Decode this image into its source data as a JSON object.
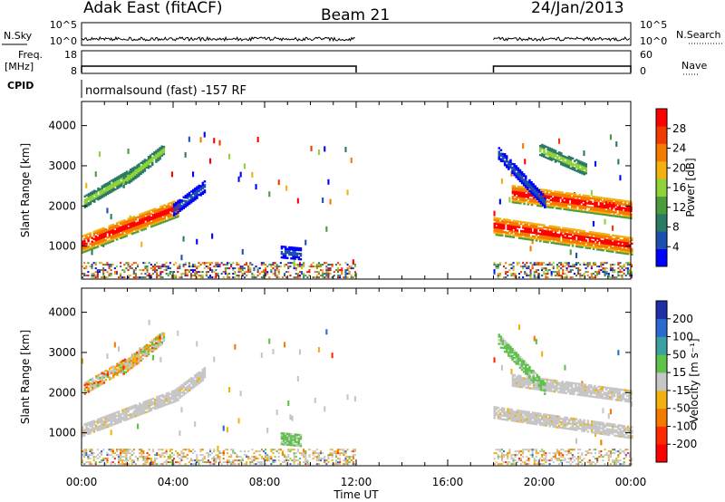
{
  "header": {
    "station": "Adak East (fitACF)",
    "beam": "Beam 21",
    "date": "24/Jan/2013"
  },
  "strip": {
    "nsky_label": "N.Sky",
    "nsearch_label": "N.Search",
    "noise_ticks_left": [
      "10^5",
      "10^0"
    ],
    "noise_ticks_right": [
      "10^5",
      "10^0"
    ],
    "freq_label": "Freq.",
    "freq_unit": "[MHz]",
    "freq_ticks": [
      "18",
      "8"
    ],
    "nave_label": "Nave",
    "nave_ticks": [
      "60",
      "0"
    ],
    "cpid_label": "CPID",
    "cpid_text": "normalsound (fast) -157 RF"
  },
  "chart_data": [
    {
      "type": "heatmap",
      "name": "power",
      "ylabel": "Slant Range [km]",
      "xlabel": "Time UT",
      "ylim": [
        180,
        4600
      ],
      "xlim_hours": [
        0,
        24
      ],
      "x_tick_labels": [
        "00:00",
        "04:00",
        "08:00",
        "12:00",
        "16:00",
        "20:00",
        "00:00"
      ],
      "y_tick_values": [
        1000,
        2000,
        3000,
        4000
      ],
      "y_tick_labels": [
        "1000",
        "2000",
        "3000",
        "4000"
      ],
      "data_gaps_hours": [
        [
          12,
          18
        ]
      ],
      "colorbar": {
        "label": "Power [dB]",
        "tick_labels": [
          "4",
          "8",
          "12",
          "16",
          "20",
          "24",
          "28"
        ],
        "range": [
          0,
          30
        ],
        "colors": [
          "#0000ff",
          "#1d4fb0",
          "#2b7a66",
          "#4a9c3c",
          "#8fd23a",
          "#f2b10f",
          "#f57a00",
          "#f23a00",
          "#ff0000"
        ]
      },
      "features": [
        {
          "start_h": 0.0,
          "end_h": 4.2,
          "range_start": 1050,
          "range_end": 1950,
          "level": "high"
        },
        {
          "start_h": 0.1,
          "end_h": 2.5,
          "range_start": 2100,
          "range_end": 2900,
          "level": "mid"
        },
        {
          "start_h": 1.8,
          "end_h": 3.6,
          "range_start": 2600,
          "range_end": 3400,
          "level": "mid"
        },
        {
          "start_h": 4.0,
          "end_h": 5.4,
          "range_start": 1900,
          "range_end": 2500,
          "level": "low"
        },
        {
          "start_h": 8.7,
          "end_h": 9.6,
          "range_start": 850,
          "range_end": 800,
          "level": "low"
        },
        {
          "start_h": 18.0,
          "end_h": 24.0,
          "range_start": 1500,
          "range_end": 1000,
          "level": "high"
        },
        {
          "start_h": 18.8,
          "end_h": 24.0,
          "range_start": 2300,
          "range_end": 1900,
          "level": "high"
        },
        {
          "start_h": 18.2,
          "end_h": 20.2,
          "range_start": 3300,
          "range_end": 2100,
          "level": "low"
        },
        {
          "start_h": 20.0,
          "end_h": 22.0,
          "range_start": 3400,
          "range_end": 2900,
          "level": "mid"
        }
      ]
    },
    {
      "type": "heatmap",
      "name": "velocity",
      "ylabel": "Slant Range [km]",
      "xlabel": "Time UT",
      "ylim": [
        180,
        4600
      ],
      "xlim_hours": [
        0,
        24
      ],
      "x_tick_labels": [
        "00:00",
        "04:00",
        "08:00",
        "12:00",
        "16:00",
        "20:00",
        "00:00"
      ],
      "y_tick_values": [
        1000,
        2000,
        3000,
        4000
      ],
      "y_tick_labels": [
        "1000",
        "2000",
        "3000",
        "4000"
      ],
      "data_gaps_hours": [
        [
          12,
          18
        ]
      ],
      "colorbar": {
        "label": "Velocity [m s⁻¹]",
        "tick_labels": [
          "200",
          "100",
          "50",
          "15",
          "-15",
          "-50",
          "-100",
          "-200"
        ],
        "colors": [
          "#1f2fa8",
          "#2a6bd0",
          "#3aa0a0",
          "#5fc24a",
          "#c6c6c6",
          "#f2b10f",
          "#f57a00",
          "#ff2a00",
          "#ff0000"
        ]
      },
      "features": [
        {
          "start_h": 0.0,
          "end_h": 4.2,
          "range_start": 1050,
          "range_end": 1950,
          "level": "grey"
        },
        {
          "start_h": 0.1,
          "end_h": 2.5,
          "range_start": 2100,
          "range_end": 2900,
          "level": "mixed"
        },
        {
          "start_h": 1.8,
          "end_h": 3.6,
          "range_start": 2600,
          "range_end": 3400,
          "level": "mixed"
        },
        {
          "start_h": 4.0,
          "end_h": 5.4,
          "range_start": 1900,
          "range_end": 2500,
          "level": "grey"
        },
        {
          "start_h": 8.7,
          "end_h": 9.6,
          "range_start": 850,
          "range_end": 800,
          "level": "green"
        },
        {
          "start_h": 18.0,
          "end_h": 24.0,
          "range_start": 1500,
          "range_end": 1000,
          "level": "grey"
        },
        {
          "start_h": 18.8,
          "end_h": 24.0,
          "range_start": 2300,
          "range_end": 1900,
          "level": "grey"
        },
        {
          "start_h": 18.2,
          "end_h": 20.2,
          "range_start": 3300,
          "range_end": 2100,
          "level": "green"
        }
      ]
    }
  ]
}
